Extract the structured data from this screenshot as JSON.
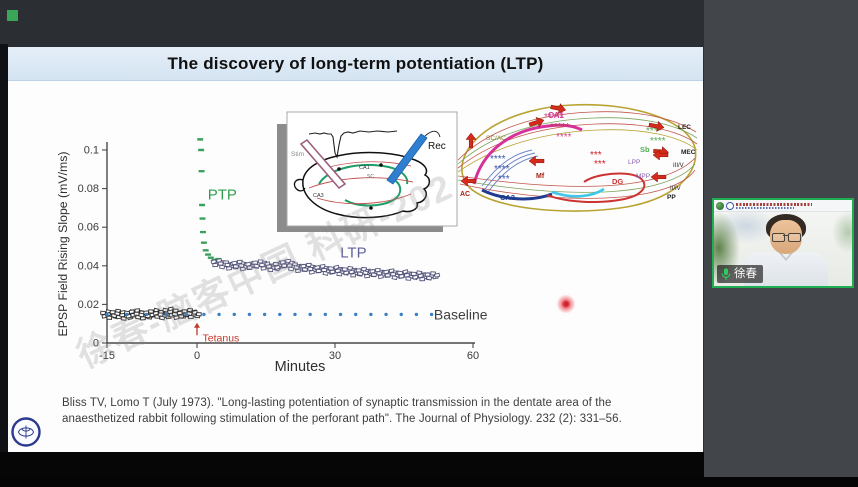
{
  "app": {
    "share_indicator_color": "#3aa757",
    "webcam_border_color": "#1fae52"
  },
  "slide": {
    "title": "The discovery of long-term potentiation (LTP)",
    "watermark": "徐春-脑客中国 科研-202",
    "citation": {
      "line1": "Bliss TV, Lomo T (July 1973). \"Long-lasting potentiation of synaptic transmission in the dentate area of the",
      "line2": "anaesthetized rabbit following stimulation of the perforant path\". The Journal of Physiology. 232 (2): 331–56."
    }
  },
  "chart_data": {
    "type": "scatter",
    "title": "",
    "xlabel": "Minutes",
    "ylabel": "EPSP Field Rising Slope (mV/ms)",
    "xlim": [
      -15,
      62
    ],
    "xticks": [
      -15,
      0,
      30,
      60
    ],
    "xtick_labels": [
      "-15",
      "0",
      "30",
      "60"
    ],
    "ylim": [
      0,
      0.105
    ],
    "yticks": [
      0,
      0.02,
      0.04,
      0.06,
      0.08,
      0.1
    ],
    "ytick_labels": [
      "0",
      "0.02",
      "0.04",
      "0.06",
      "0.08",
      "0.1"
    ],
    "grid": false,
    "legend": "inline-annotations",
    "annotations": [
      {
        "text": "PTP",
        "color": "#2f9e4f",
        "x": 5.5,
        "y": 0.077,
        "size": 15,
        "anchor": "middle"
      },
      {
        "text": "LTP",
        "color": "#62629a",
        "x": 34,
        "y": 0.047,
        "size": 15,
        "anchor": "middle"
      },
      {
        "text": "Baseline",
        "color": "#3f3f3f",
        "x": 51.5,
        "y": 0.0148,
        "size": 14,
        "anchor": "start"
      },
      {
        "text": "Tetanus",
        "color": "#c0392b",
        "x": 1.2,
        "y": 0.0026,
        "size": 10.5,
        "anchor": "start"
      }
    ],
    "tetanus_arrow": {
      "x": 0,
      "y_from": 0.004,
      "y_to": 0.0105,
      "color": "#c0392b"
    },
    "series": [
      {
        "name": "pre-tetanus baseline (black open symbols)",
        "marker": "open-square",
        "cluster": true,
        "color": "#2e2e2e",
        "points": [
          [
            -15,
            0.015
          ],
          [
            -14.2,
            0.0142
          ],
          [
            -13.4,
            0.0153
          ],
          [
            -12.6,
            0.0146
          ],
          [
            -11.8,
            0.0138
          ],
          [
            -11,
            0.015
          ],
          [
            -10.2,
            0.0156
          ],
          [
            -9.4,
            0.0145
          ],
          [
            -8.6,
            0.0139
          ],
          [
            -7.8,
            0.0151
          ],
          [
            -7,
            0.0157
          ],
          [
            -6.2,
            0.0148
          ],
          [
            -5.4,
            0.0141
          ],
          [
            -4.6,
            0.0164
          ],
          [
            -3.8,
            0.0155
          ],
          [
            -3,
            0.0143
          ],
          [
            -2.2,
            0.0149
          ],
          [
            -1.4,
            0.0158
          ],
          [
            -0.6,
            0.0146
          ]
        ]
      },
      {
        "name": "baseline (blue dotted reference)",
        "marker": "dot",
        "color": "#3b7fc4",
        "line": {
          "x_start": -15,
          "x_end": 51,
          "n": 21,
          "y": 0.0148
        }
      },
      {
        "name": "PTP (green dashes)",
        "marker": "dash",
        "color": "#3aa05c",
        "points": [
          [
            0.7,
            0.1055
          ],
          [
            0.9,
            0.1
          ],
          [
            1.0,
            0.089
          ],
          [
            1.1,
            0.0715
          ],
          [
            1.2,
            0.0645
          ],
          [
            1.3,
            0.0575
          ],
          [
            1.5,
            0.052
          ],
          [
            1.9,
            0.048
          ],
          [
            2.4,
            0.0458
          ],
          [
            3.0,
            0.0442
          ],
          [
            3.8,
            0.043
          ],
          [
            4.6,
            0.0435
          ]
        ]
      },
      {
        "name": "LTP (violet open symbols)",
        "marker": "open-square",
        "cluster": true,
        "color": "#54547c",
        "points": [
          [
            4.5,
            0.0415
          ],
          [
            6,
            0.0405
          ],
          [
            7.5,
            0.0398
          ],
          [
            9,
            0.0408
          ],
          [
            10.5,
            0.0395
          ],
          [
            12,
            0.0402
          ],
          [
            13.5,
            0.041
          ],
          [
            15,
            0.0398
          ],
          [
            16.5,
            0.039
          ],
          [
            18,
            0.0403
          ],
          [
            19.5,
            0.0412
          ],
          [
            21,
            0.0395
          ],
          [
            22.5,
            0.0385
          ],
          [
            24,
            0.0392
          ],
          [
            25.5,
            0.0378
          ],
          [
            27,
            0.0385
          ],
          [
            28.5,
            0.0372
          ],
          [
            30,
            0.038
          ],
          [
            31.5,
            0.0368
          ],
          [
            33,
            0.0375
          ],
          [
            34.5,
            0.0362
          ],
          [
            36,
            0.037
          ],
          [
            37.5,
            0.0358
          ],
          [
            39,
            0.0365
          ],
          [
            40.5,
            0.0355
          ],
          [
            42,
            0.0362
          ],
          [
            43.5,
            0.035
          ],
          [
            45,
            0.0357
          ],
          [
            46.5,
            0.0345
          ],
          [
            48,
            0.0352
          ],
          [
            49.5,
            0.0342
          ],
          [
            51,
            0.0348
          ]
        ]
      }
    ]
  },
  "inset": {
    "rec": "Rec",
    "stim": "Stim",
    "ca1": "CA1",
    "sc": "SC",
    "ca3": "CA3"
  },
  "circuit": {
    "ca1": "CA1",
    "sc_ac": "SC/AC",
    "ca3": "CA3",
    "ac": "AC",
    "mf": "Mf",
    "dg": "DG",
    "sb": "Sb",
    "lpp": "LPP",
    "mpp": "MPP",
    "lec": "LEC",
    "mec": "MEC",
    "layer_iii_v": "III/V",
    "layer_ii_iv": "II/IV",
    "pp": "PP"
  },
  "webcam": {
    "name": "徐春"
  }
}
